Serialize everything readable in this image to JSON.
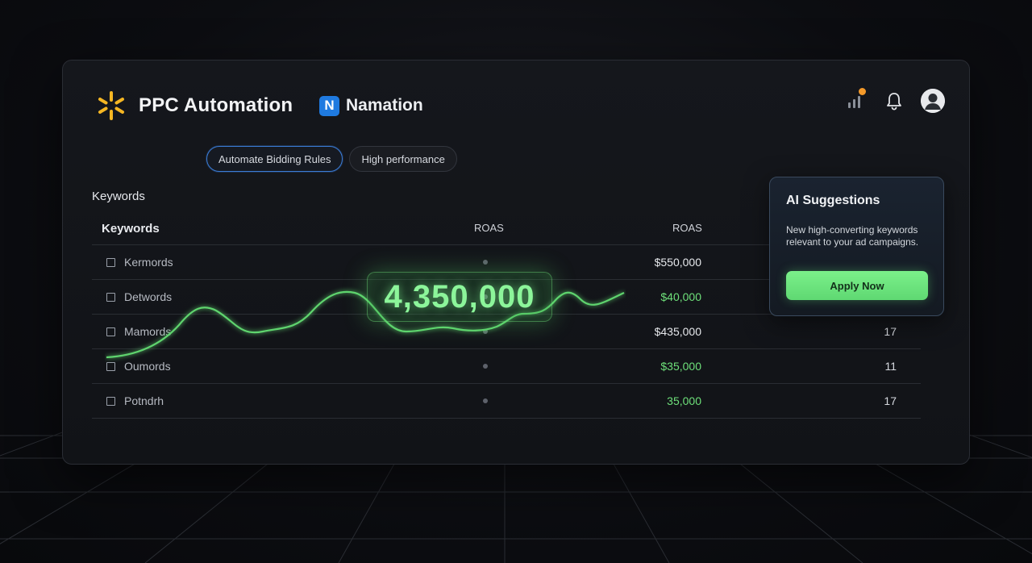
{
  "header": {
    "title": "PPC Automation",
    "sub_brand_letter": "N",
    "sub_brand_name": "Namation",
    "notification_dot_color": "#f59a2a",
    "icons": [
      "signal-icon",
      "bell-icon",
      "user-avatar-icon"
    ]
  },
  "pills": [
    {
      "label": "Automate Bidding Rules",
      "active": true
    },
    {
      "label": "High performance",
      "active": false
    }
  ],
  "section_title": "Keywords",
  "table": {
    "headers": {
      "keyword": "Keywords",
      "roas_1": "ROAS",
      "roas_2": "ROAS"
    },
    "rows": [
      {
        "keyword": "Kermords",
        "value": "$550,000",
        "count": ""
      },
      {
        "keyword": "Detwords",
        "value": "$40,000",
        "count": ""
      },
      {
        "keyword": "Mamords",
        "value": "$435,000",
        "count": "17"
      },
      {
        "keyword": "Oumords",
        "value": "$35,000",
        "count": "11"
      },
      {
        "keyword": "Potndrh",
        "value": "35,000",
        "count": "17"
      }
    ]
  },
  "highlight_value": "4,350,000",
  "ai_suggestions": {
    "title": "AI Suggestions",
    "description": "New high-converting keywords relevant to your ad campaigns.",
    "button_label": "Apply Now"
  },
  "colors": {
    "accent_green": "#6ee07a",
    "brand_yellow": "#f5b623",
    "badge_blue": "#1f7ae0"
  }
}
